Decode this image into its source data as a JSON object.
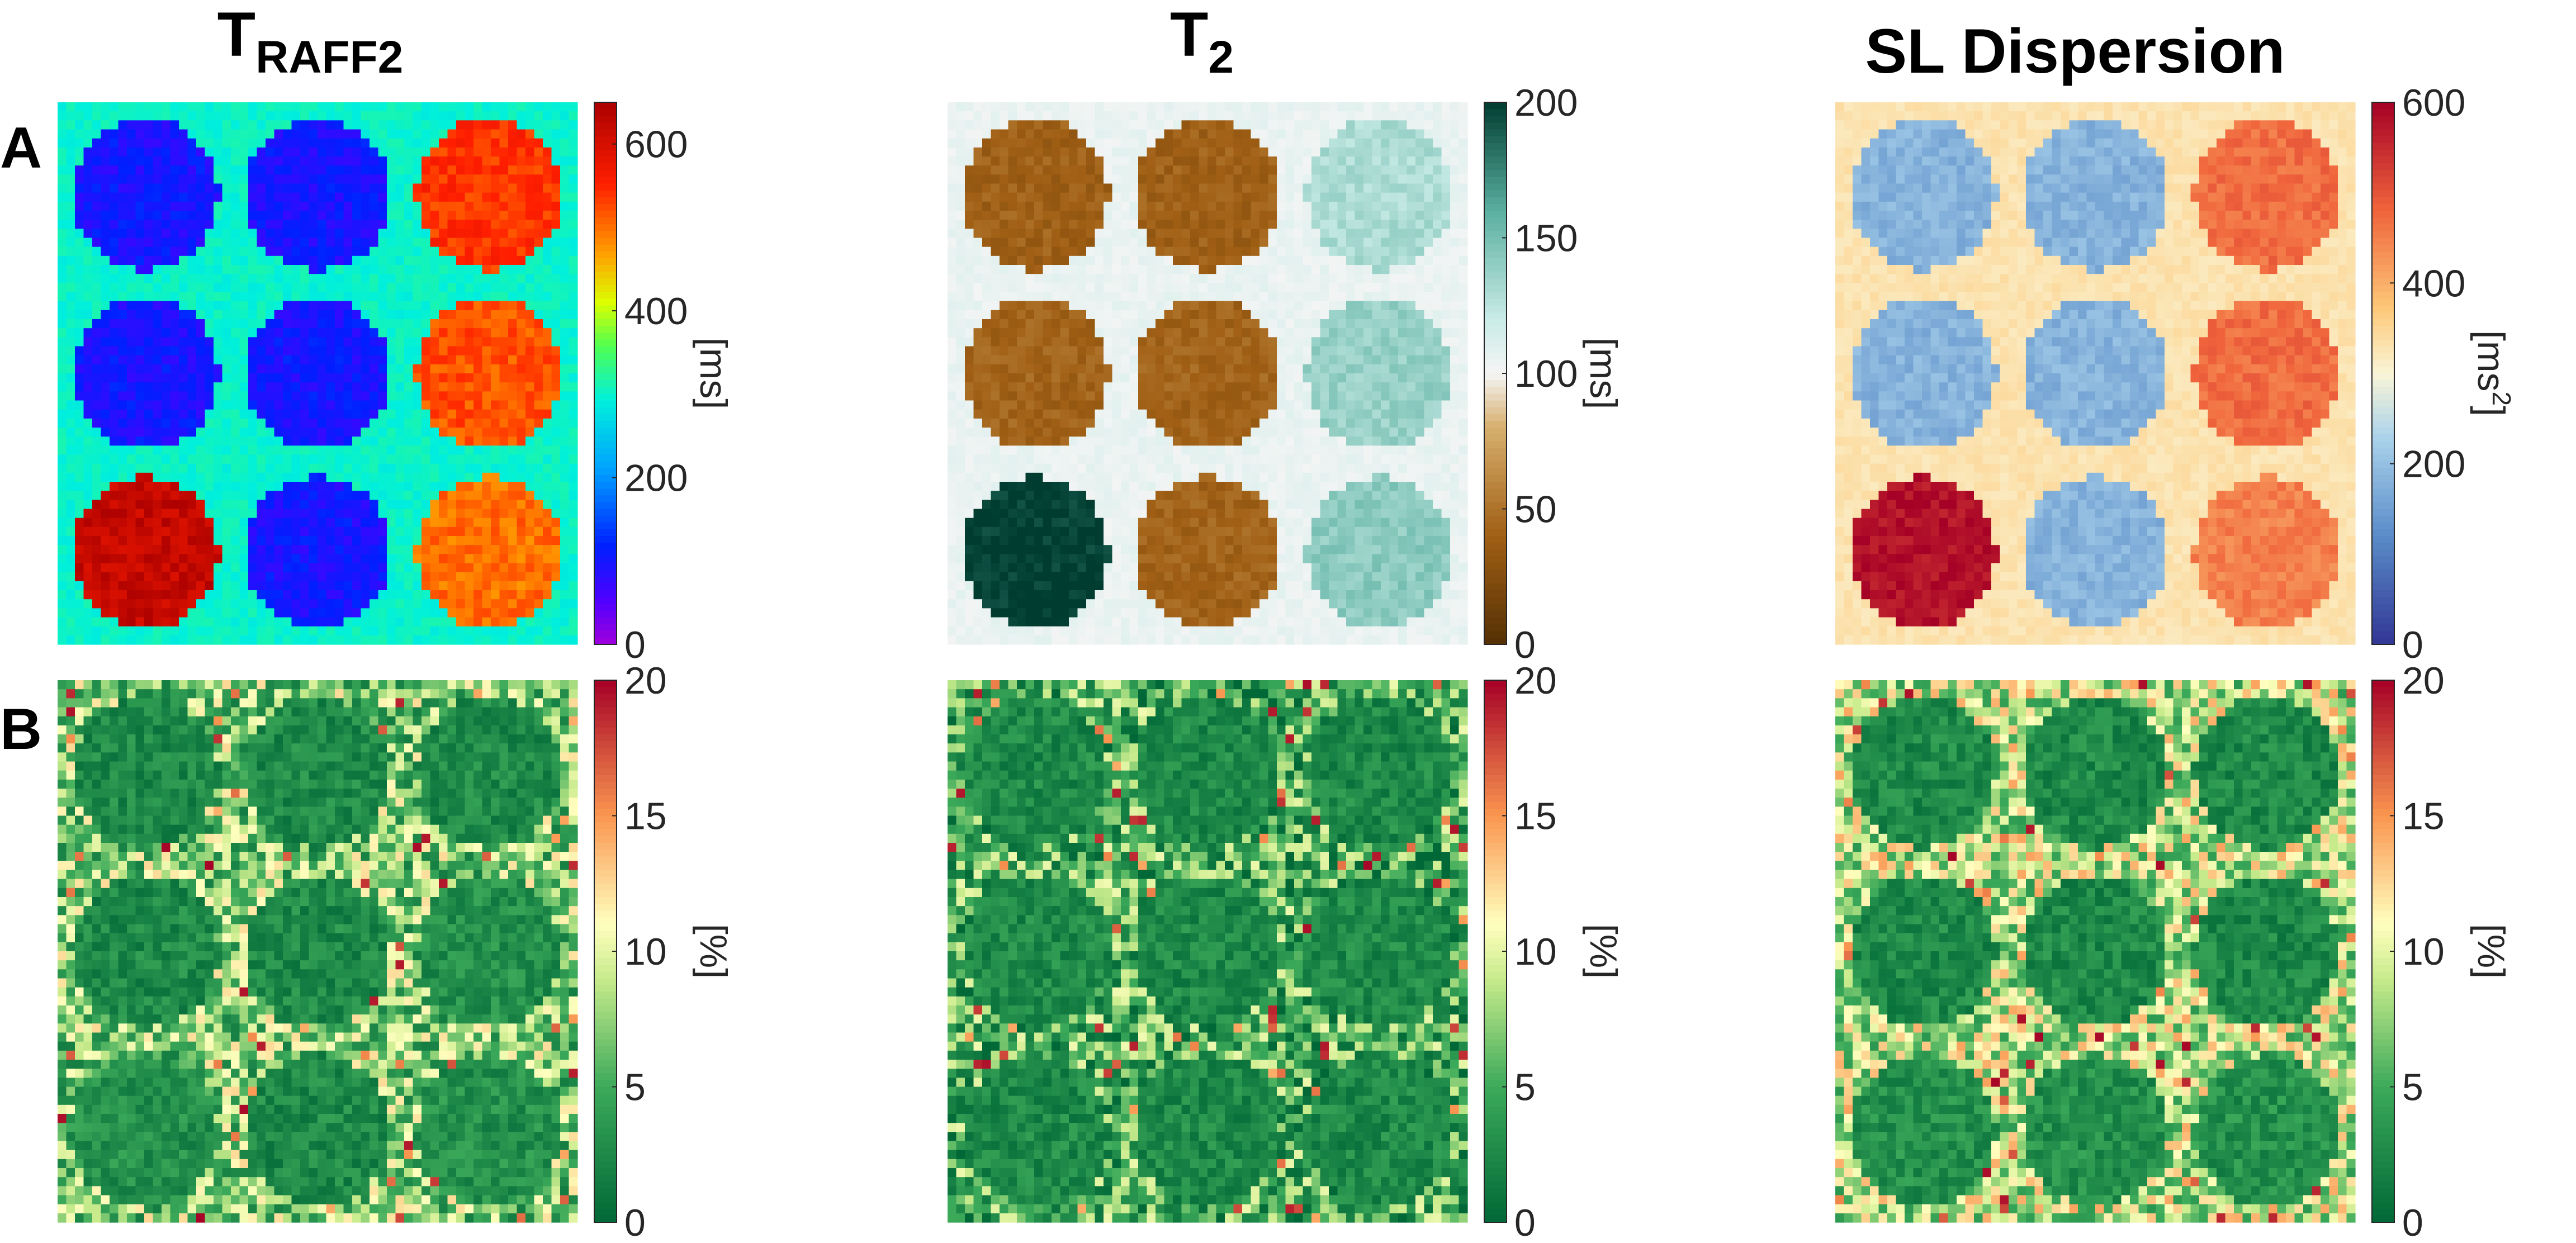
{
  "row_labels": [
    "A",
    "B"
  ],
  "columns": [
    {
      "title_main": "T",
      "title_sub": "RAFF2"
    },
    {
      "title_main": "T",
      "title_sub": "2"
    },
    {
      "title_main": "SL Dispersion",
      "title_sub": ""
    }
  ],
  "chart_data": [
    {
      "type": "heatmap",
      "row": "A",
      "column": "T RAFF2",
      "colormap": "jet",
      "colorbar": {
        "ticks": [
          "0",
          "200",
          "400",
          "600"
        ],
        "range": [
          0,
          650
        ],
        "unit_label": "[ms]",
        "unit_main": "[ms]",
        "unit_sup": ""
      },
      "phantom_values": [
        [
          100,
          100,
          540
        ],
        [
          100,
          100,
          520
        ],
        [
          620,
          100,
          500
        ]
      ],
      "background": 300
    },
    {
      "type": "heatmap",
      "row": "A",
      "column": "T 2",
      "colormap": "brown-white-teal",
      "colorbar": {
        "ticks": [
          "0",
          "50",
          "100",
          "150",
          "200"
        ],
        "range": [
          0,
          200
        ],
        "unit_label": "[ms]",
        "unit_main": "[ms]",
        "unit_sup": ""
      },
      "phantom_values": [
        [
          40,
          40,
          130
        ],
        [
          42,
          42,
          138
        ],
        [
          200,
          42,
          142
        ]
      ],
      "background": 105
    },
    {
      "type": "heatmap",
      "row": "A",
      "column": "SL Dispersion",
      "colormap": "blue-white-red",
      "colorbar": {
        "ticks": [
          "0",
          "200",
          "400",
          "600"
        ],
        "range": [
          0,
          600
        ],
        "unit_label": "[ms2]",
        "unit_main": "[ms",
        "unit_sup": "2",
        "unit_close": "]"
      },
      "phantom_values": [
        [
          180,
          180,
          470
        ],
        [
          180,
          180,
          470
        ],
        [
          580,
          180,
          450
        ]
      ],
      "background": 330
    },
    {
      "type": "heatmap",
      "row": "B",
      "column": "T RAFF2 error",
      "colormap": "green-yellow-red",
      "colorbar": {
        "ticks": [
          "0",
          "5",
          "10",
          "15",
          "20"
        ],
        "range": [
          0,
          20
        ],
        "unit_label": "[%]",
        "unit_main": "[%]",
        "unit_sup": ""
      },
      "phantom_values": [
        [
          2.5,
          2.5,
          2.5
        ],
        [
          2.5,
          2.5,
          3
        ],
        [
          3,
          2.5,
          3
        ]
      ],
      "background": 7
    },
    {
      "type": "heatmap",
      "row": "B",
      "column": "T 2 error",
      "colormap": "green-yellow-red",
      "colorbar": {
        "ticks": [
          "0",
          "5",
          "10",
          "15",
          "20"
        ],
        "range": [
          0,
          20
        ],
        "unit_label": "[%]",
        "unit_main": "[%]",
        "unit_sup": ""
      },
      "phantom_values": [
        [
          2.5,
          2.5,
          2.5
        ],
        [
          2.5,
          2.5,
          2.5
        ],
        [
          2.5,
          2.5,
          2.5
        ]
      ],
      "background": 5
    },
    {
      "type": "heatmap",
      "row": "B",
      "column": "SL Dispersion error",
      "colormap": "green-yellow-red",
      "colorbar": {
        "ticks": [
          "0",
          "5",
          "10",
          "15",
          "20"
        ],
        "range": [
          0,
          20
        ],
        "unit_label": "[%]",
        "unit_main": "[%]",
        "unit_sup": ""
      },
      "phantom_values": [
        [
          2.5,
          2.5,
          2.5
        ],
        [
          2.5,
          2.5,
          2.5
        ],
        [
          3,
          3,
          3
        ]
      ],
      "background": 9
    }
  ]
}
